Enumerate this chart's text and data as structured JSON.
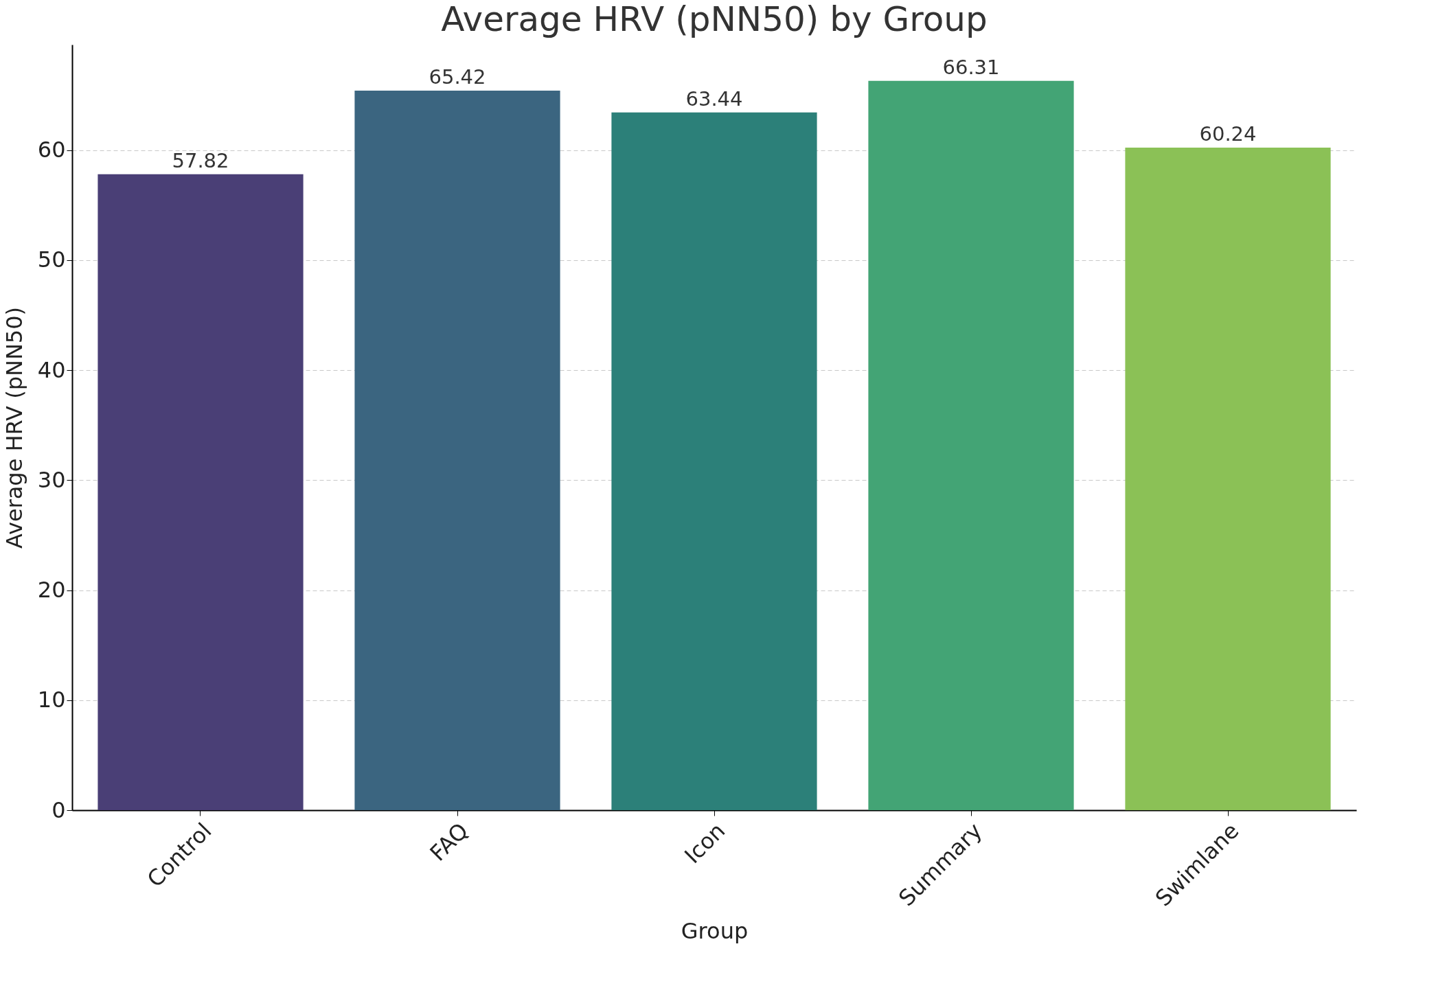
{
  "chart_data": {
    "type": "bar",
    "title": "Average HRV (pNN50) by Group",
    "xlabel": "Group",
    "ylabel": "Average HRV (pNN50)",
    "categories": [
      "Control",
      "FAQ",
      "Icon",
      "Summary",
      "Swimlane"
    ],
    "values": [
      57.82,
      65.42,
      63.44,
      66.31,
      60.24
    ],
    "colors": [
      "#4a3f76",
      "#3b6580",
      "#2c8079",
      "#43a475",
      "#8bc156"
    ],
    "ylim": [
      0,
      69.6
    ],
    "yticks": [
      0,
      10,
      20,
      30,
      40,
      50,
      60
    ],
    "grid": "y",
    "data_labels": true
  }
}
